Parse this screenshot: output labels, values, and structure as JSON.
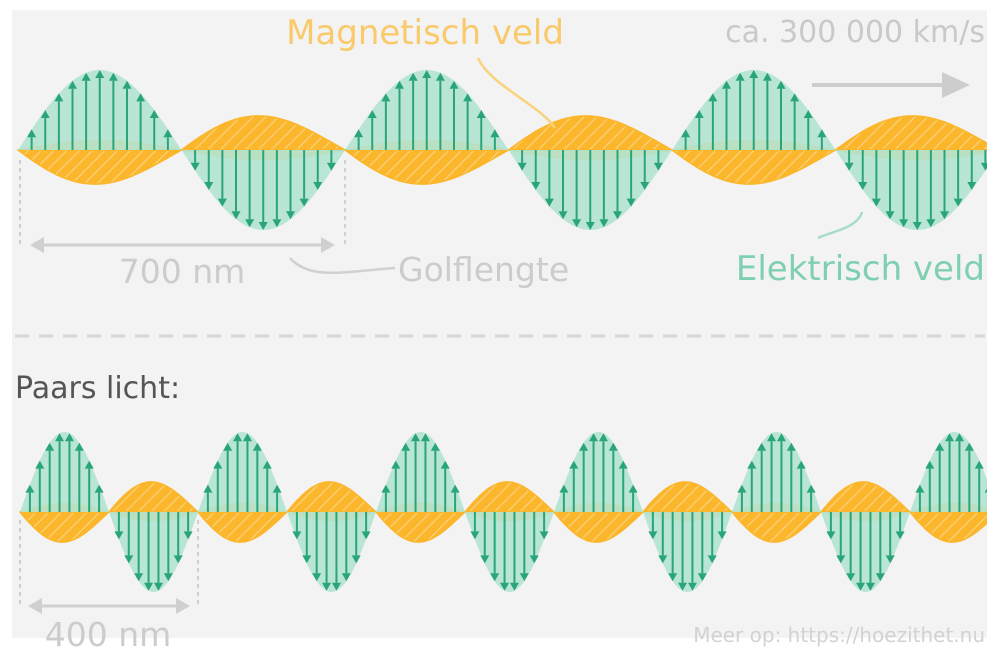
{
  "colors": {
    "background": "#f3f3f3",
    "electric_fill": "#b3e3d1",
    "electric_arrow": "#2aa57a",
    "magnetic_fill": "#fbb62b",
    "magnetic_hatch": "#f9d27b",
    "label_magnetic": "#f9c96a",
    "label_electric": "#7fcfb1",
    "label_gray": "#c9c9c9",
    "label_dark": "#555555",
    "divider": "#d6d6d6"
  },
  "top_wave": {
    "speed_label": "ca. 300 000 km/s",
    "magnetic_label": "Magnetisch veld",
    "electric_label": "Elektrisch veld",
    "wavelength_value": "700 nm",
    "wavelength_label": "Golflengte",
    "wavelength_nm": 700,
    "cycles_shown": 3
  },
  "bottom_wave": {
    "title": "Paars licht:",
    "wavelength_value": "400 nm",
    "wavelength_nm": 400,
    "cycles_shown": 5.5
  },
  "footer": {
    "credit": "Meer op: https://hoezithet.nu"
  },
  "icons": {
    "speed_arrow": "arrow-right-icon",
    "dimension_arrow": "double-arrow-icon"
  }
}
